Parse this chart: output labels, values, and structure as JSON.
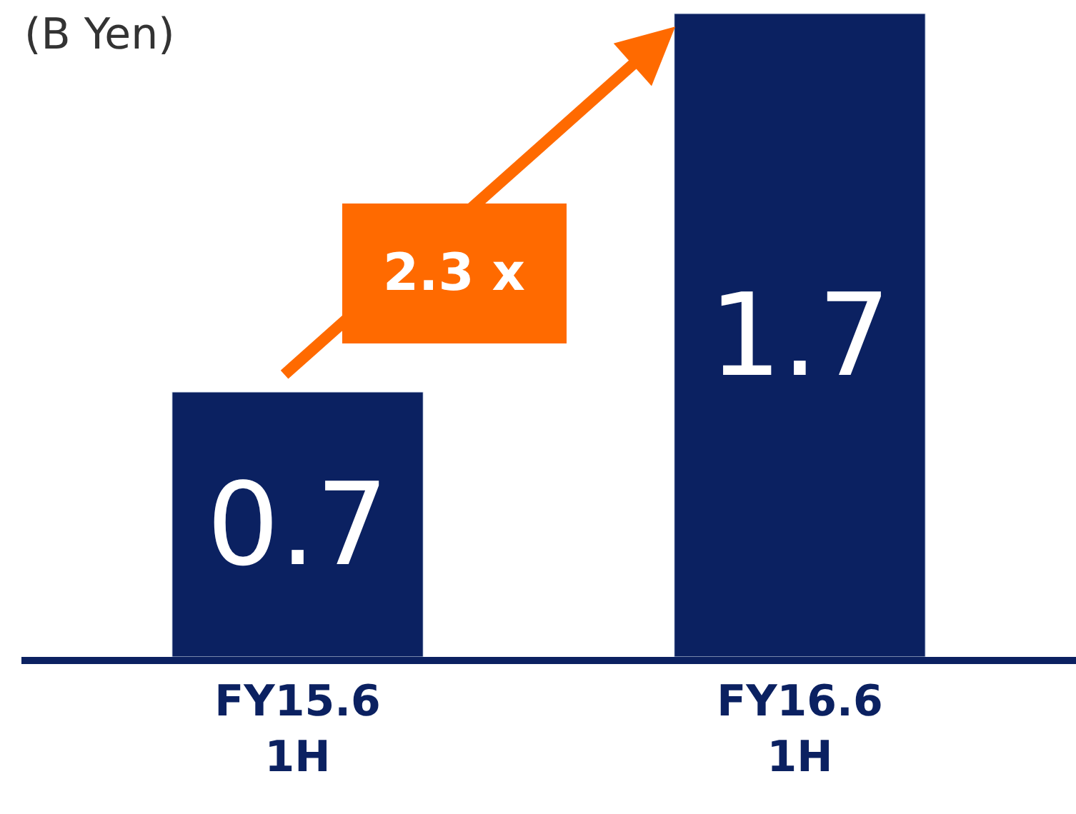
{
  "chart_data": {
    "type": "bar",
    "ylabel": "(B Yen)",
    "categories": [
      "FY15.6\n1H",
      "FY16.6\n1H"
    ],
    "values": [
      0.7,
      1.7
    ],
    "color": "#0b2161",
    "data_labels": true,
    "annotations": [
      "2.3 x"
    ]
  }
}
